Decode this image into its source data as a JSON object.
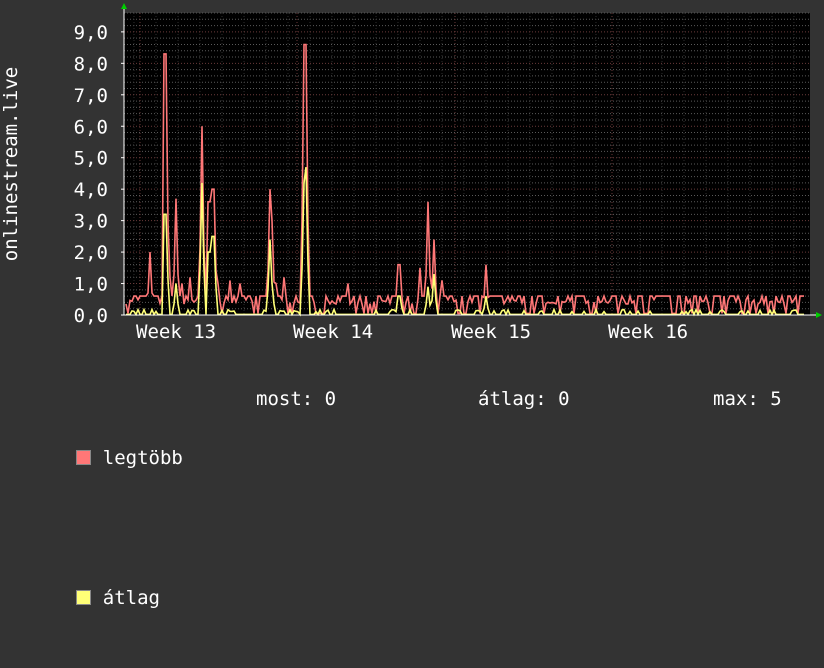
{
  "chart_data": {
    "type": "line",
    "ylabel": "onlinestream.live",
    "ylim": [
      0,
      9.6
    ],
    "yticks": [
      "0,0",
      "1,0",
      "2,0",
      "3,0",
      "4,0",
      "5,0",
      "6,0",
      "7,0",
      "8,0",
      "9,0"
    ],
    "xticks": [
      "Week  13",
      "Week  14",
      "Week  15",
      "Week  16"
    ],
    "grid": true,
    "legend_position": "bottom-left",
    "colors": {
      "background": "#333333",
      "plot_bg": "#000000",
      "grid": "#5a5a5a",
      "axis": "#ffffff",
      "arrow": "#00cc00"
    },
    "series": [
      {
        "name": "legtöbb",
        "color": "#ff7777",
        "peaks": [
          [
            0.06,
            2.0
          ],
          [
            0.16,
            8.3
          ],
          [
            0.19,
            1.2
          ],
          [
            0.23,
            3.7
          ],
          [
            0.27,
            1.0
          ],
          [
            0.32,
            1.2
          ],
          [
            0.39,
            6.0
          ],
          [
            0.44,
            3.6
          ],
          [
            0.45,
            2.8
          ],
          [
            0.465,
            4.0
          ],
          [
            0.5,
            1.0
          ],
          [
            0.57,
            1.1
          ],
          [
            0.64,
            1.0
          ],
          [
            0.83,
            4.0
          ],
          [
            0.845,
            3.0
          ],
          [
            0.87,
            1.0
          ],
          [
            0.92,
            1.2
          ],
          [
            1.05,
            8.6
          ],
          [
            1.06,
            8.5
          ],
          [
            1.32,
            1.0
          ],
          [
            1.65,
            1.6
          ],
          [
            1.78,
            1.5
          ],
          [
            1.835,
            3.6
          ],
          [
            1.875,
            2.4
          ],
          [
            1.92,
            1.1
          ],
          [
            2.2,
            1.6
          ]
        ]
      },
      {
        "name": "átlag",
        "color": "#ffff77",
        "peaks": [
          [
            0.16,
            3.2
          ],
          [
            0.23,
            1.0
          ],
          [
            0.39,
            4.2
          ],
          [
            0.44,
            2.0
          ],
          [
            0.465,
            2.5
          ],
          [
            0.83,
            2.4
          ],
          [
            0.845,
            1.0
          ],
          [
            1.05,
            4.2
          ],
          [
            1.06,
            4.7
          ],
          [
            1.65,
            0.6
          ],
          [
            1.835,
            0.9
          ],
          [
            1.875,
            1.3
          ],
          [
            2.2,
            0.6
          ]
        ]
      }
    ]
  },
  "legend": {
    "max_label": "legtöbb",
    "avg_label": "átlag",
    "max_color": "#ff7777",
    "avg_color": "#ffff77"
  },
  "stats": {
    "now": "most: 0",
    "avg": "átlag: 0",
    "max": "max: 5"
  }
}
